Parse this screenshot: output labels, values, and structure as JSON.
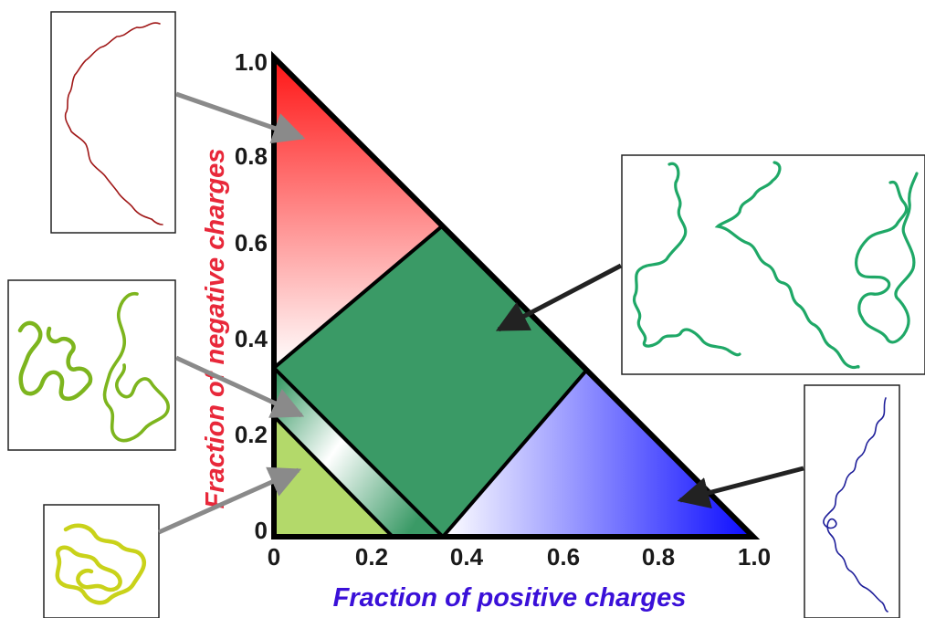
{
  "xlabel": "Fraction of positive charges",
  "ylabel": "Fraction of negative charges",
  "colors": {
    "xlabel": "#3a10d8",
    "ylabel": "#e8283a",
    "region_red": "#ff1a1a",
    "region_blue": "#1010ff",
    "region_green": "#3a9a66",
    "region_lightgreen": "#b3d96a",
    "chain_red": "#a01818",
    "chain_green": "#1fa867",
    "chain_blue": "#1f1f9a",
    "chain_lime": "#7db51e",
    "chain_yellow": "#c9d21a"
  },
  "x_ticks": [
    "0",
    "0.2",
    "0.4",
    "0.6",
    "0.8",
    "1.0"
  ],
  "y_ticks": [
    "0",
    "0.2",
    "0.4",
    "0.6",
    "0.8",
    "1.0"
  ]
}
